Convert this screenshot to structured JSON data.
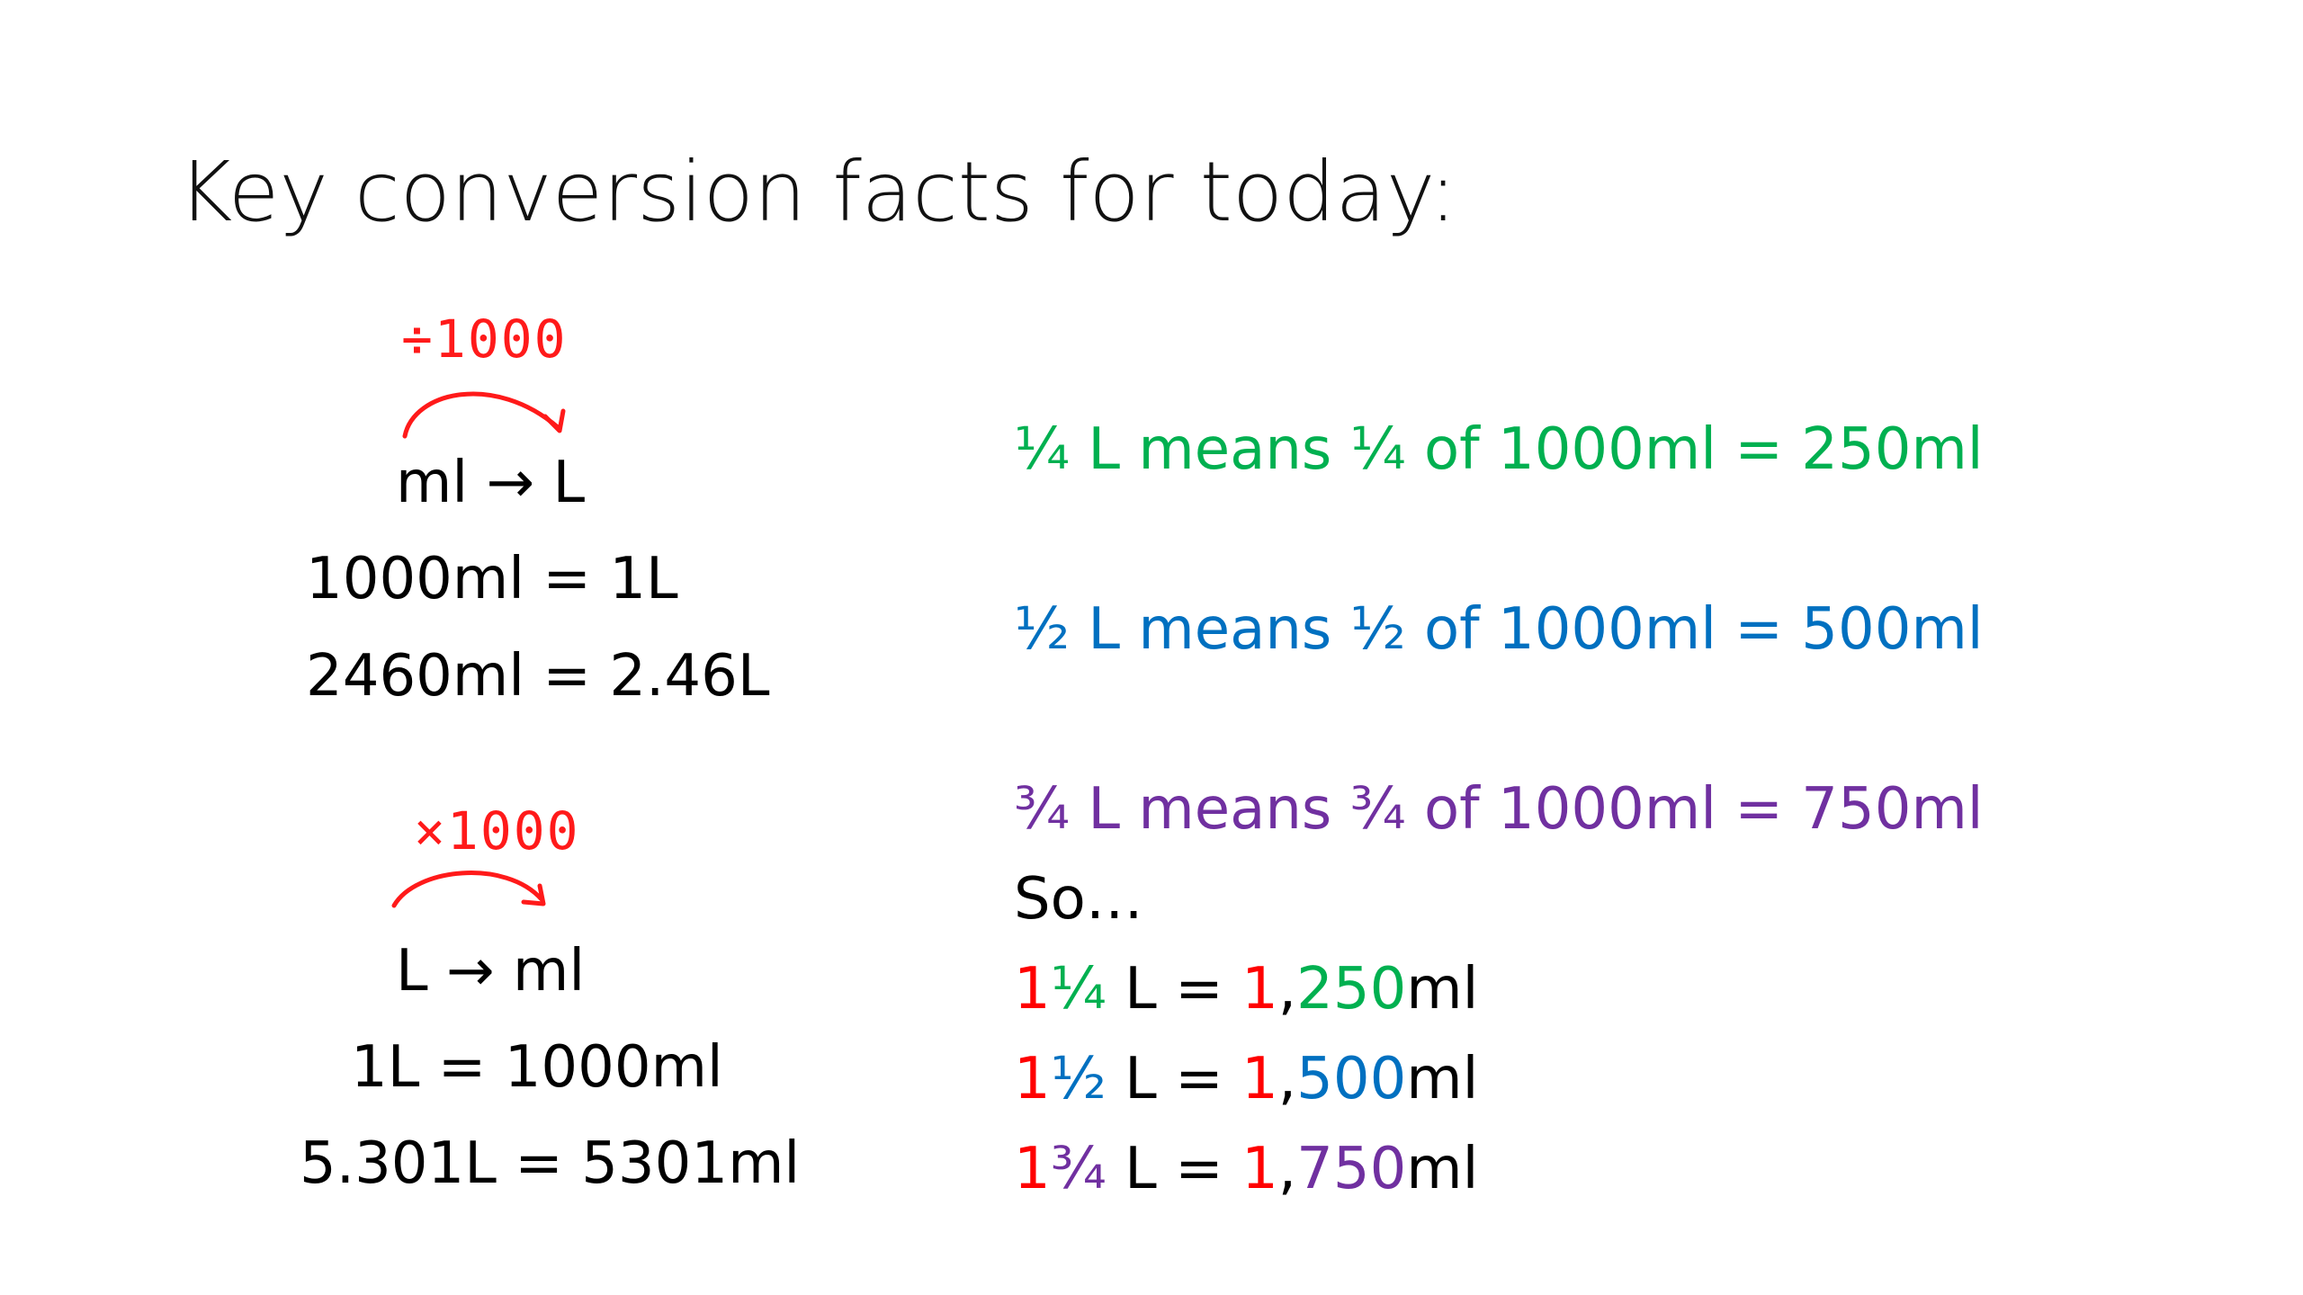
{
  "title": "Key conversion facts for today:",
  "colors": {
    "green": "#00b050",
    "blue": "#0070c0",
    "purple": "#7030a0",
    "red": "#ff0000",
    "annotation": "#ff1a1a"
  },
  "left": {
    "block1": {
      "annotation": "÷1000",
      "heading": "ml → L",
      "lines": [
        "1000ml = 1L",
        "2460ml = 2.46L"
      ]
    },
    "block2": {
      "annotation": "×1000",
      "heading": "L → ml",
      "lines": [
        "1L = 1000ml",
        "5.301L = 5301ml"
      ]
    }
  },
  "right": {
    "quarter": "¼ L means ¼ of 1000ml = 250ml",
    "half": "½ L means ½ of 1000ml = 500ml",
    "three_quarter": "¾ L means ¾ of 1000ml = 750ml",
    "so": "So…",
    "results": [
      {
        "whole": "1",
        "frac": "¼",
        "mid": " L = ",
        "lead": "1",
        "comma": ",",
        "num": "250",
        "unit": "ml"
      },
      {
        "whole": "1",
        "frac": "½",
        "mid": " L = ",
        "lead": "1",
        "comma": ",",
        "num": "500",
        "unit": "ml"
      },
      {
        "whole": "1",
        "frac": "¾",
        "mid": " L = ",
        "lead": "1",
        "comma": ",",
        "num": "750",
        "unit": "ml"
      }
    ]
  }
}
